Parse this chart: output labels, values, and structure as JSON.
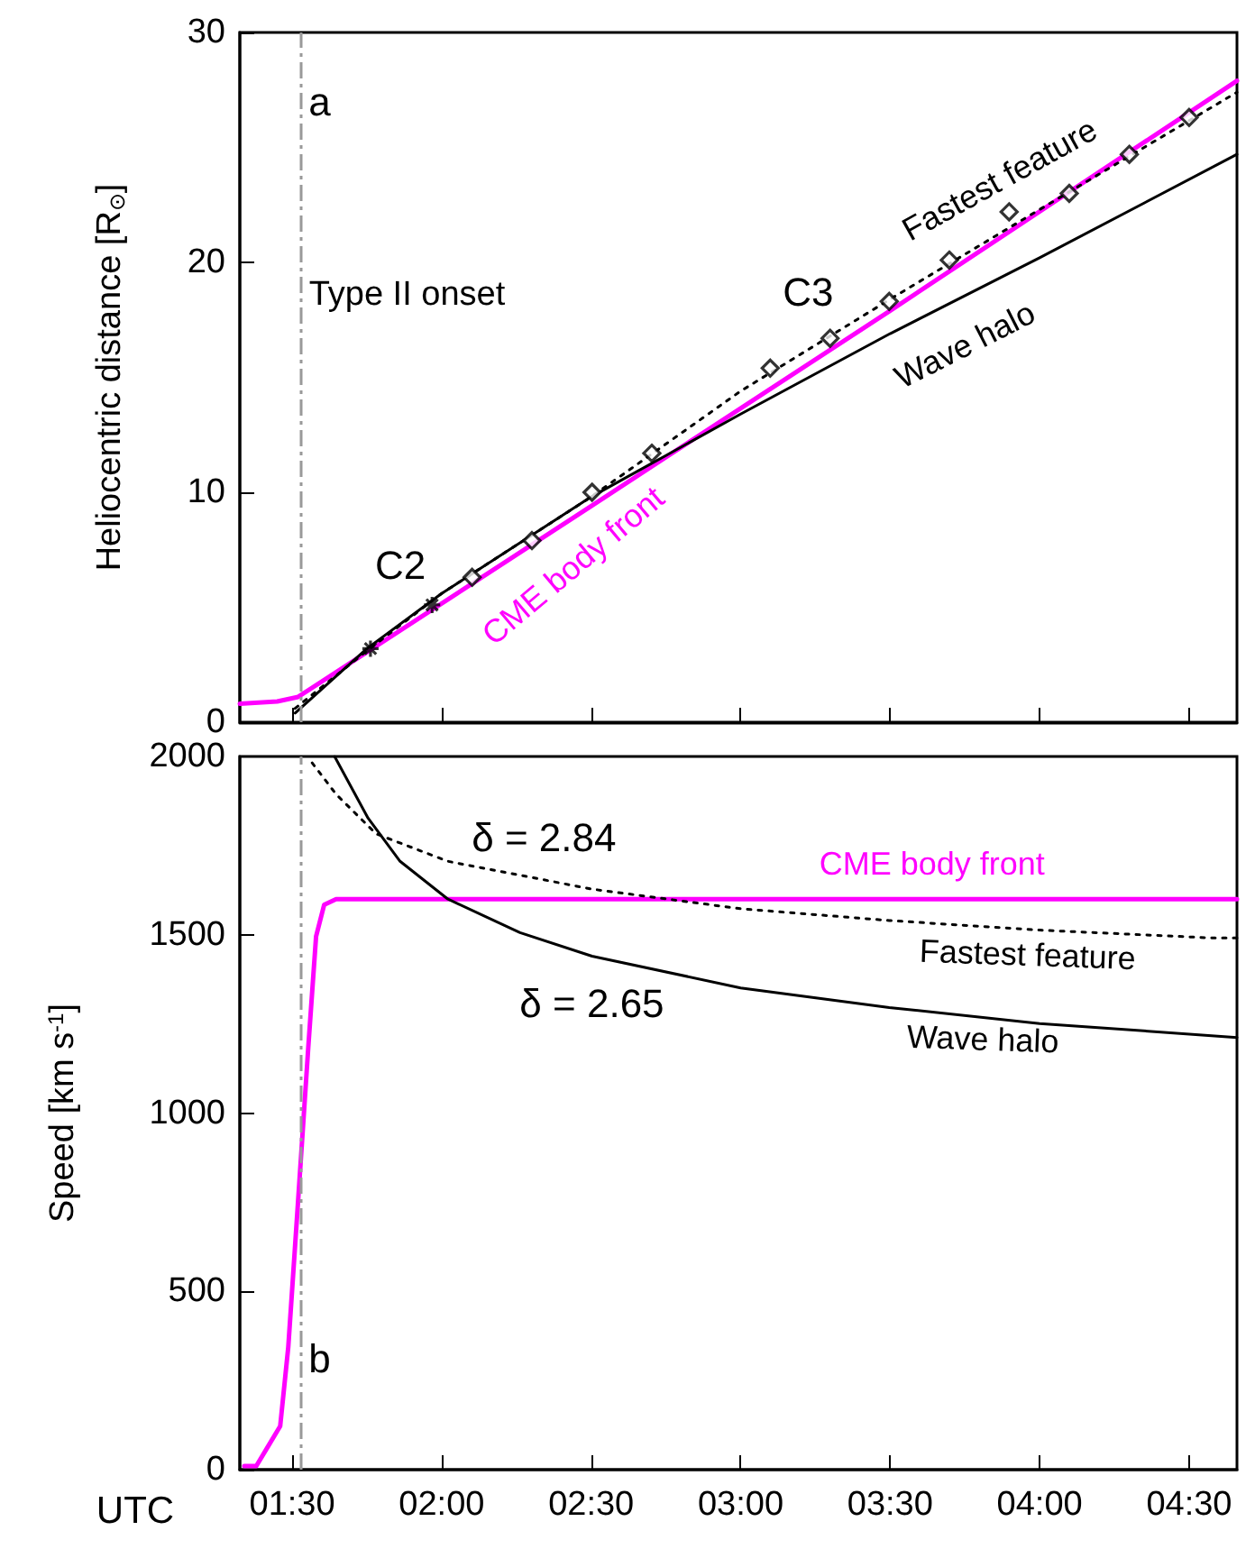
{
  "chart_data": [
    {
      "type": "line",
      "ylabel": "Heliocentric distance [R$_{⊙}$]",
      "xlim": [
        1.325,
        4.66
      ],
      "ylim": [
        0,
        30
      ],
      "yticks": [
        0,
        10,
        20,
        30
      ],
      "xticks": [
        {
          "value": 1.5,
          "label": null
        },
        {
          "value": 2,
          "label": null
        },
        {
          "value": 2.5,
          "label": null
        },
        {
          "value": 3,
          "label": null
        },
        {
          "value": 3.5,
          "label": null
        },
        {
          "value": 4,
          "label": null
        },
        {
          "value": 4.5,
          "label": null
        }
      ],
      "tick_labels": "y",
      "grid": false,
      "legend": false,
      "series": [
        {
          "name": "CME body front",
          "color": "#ff00ff",
          "line_style": "solid",
          "marker": "none",
          "x": [
            1.325,
            1.45,
            1.52,
            2.5,
            3.5,
            4.66
          ],
          "values": [
            0.8,
            0.9,
            1.1,
            9.4,
            17.9,
            27.9
          ]
        },
        {
          "name": "Fastest feature",
          "color": "#000000",
          "line_style": "dotted",
          "marker": "none",
          "x": [
            1.51,
            1.75,
            2.0,
            2.5,
            3.0,
            3.5,
            4.0,
            4.66
          ],
          "values": [
            0.6,
            3.1,
            5.6,
            9.8,
            14.4,
            18.4,
            22.3,
            27.4
          ]
        },
        {
          "name": "Wave halo",
          "color": "#000000",
          "line_style": "solid",
          "marker": "none",
          "x": [
            1.51,
            1.75,
            2.0,
            2.5,
            2.75,
            3.0,
            3.5,
            4.0,
            4.66
          ],
          "values": [
            0.4,
            3.2,
            5.6,
            9.8,
            11.6,
            13.4,
            16.9,
            20.2,
            24.7
          ]
        },
        {
          "type": "scatter",
          "color": "#000000",
          "marker": "cross",
          "x": [
            1.762,
            1.968
          ],
          "values": [
            3.2,
            5.1
          ]
        },
        {
          "type": "scatter",
          "color": "#000000",
          "marker": "diamond",
          "x": [
            2.102,
            2.302,
            2.503,
            2.703,
            3.099,
            3.299,
            3.497,
            3.698,
            3.898,
            4.099,
            4.3,
            4.5
          ],
          "values": [
            6.3,
            7.9,
            10.0,
            11.7,
            15.4,
            16.7,
            18.3,
            20.1,
            22.2,
            23.0,
            24.7,
            26.3
          ]
        }
      ],
      "ref_lines": [
        {
          "axis": "x",
          "value": 1.532,
          "label": "Type II onset",
          "color": "#999999",
          "line_style": "dashed"
        }
      ],
      "annotations": [
        "a",
        "C2",
        "C3"
      ]
    },
    {
      "type": "line",
      "xlabel": "UTC",
      "ylabel": "Speed [km s$^{-1}$]",
      "xlim": [
        1.325,
        4.66
      ],
      "ylim": [
        0,
        2000
      ],
      "yticks": [
        0,
        500,
        1000,
        1500,
        2000
      ],
      "xticks": [
        {
          "value": 1.5,
          "label": "01:30"
        },
        {
          "value": 2,
          "label": "02:00"
        },
        {
          "value": 2.5,
          "label": "02:30"
        },
        {
          "value": 3,
          "label": "03:00"
        },
        {
          "value": 3.5,
          "label": "03:30"
        },
        {
          "value": 4,
          "label": "04:00"
        },
        {
          "value": 4.5,
          "label": "04:30"
        }
      ],
      "grid": false,
      "legend": false,
      "series": [
        {
          "name": "CME body front",
          "color": "#ff00ff",
          "line_style": "solid",
          "marker": "none",
          "x": [
            1.34,
            1.38,
            1.42,
            1.46,
            1.487,
            1.519,
            1.554,
            1.58,
            1.607,
            1.647,
            4.66
          ],
          "values": [
            10,
            10,
            66,
            122,
            343,
            742,
            1185,
            1495,
            1584,
            1600,
            1600
          ]
        },
        {
          "name": "Fastest feature",
          "color": "#000000",
          "line_style": "dotted",
          "marker": "none",
          "x": [
            1.567,
            1.647,
            1.781,
            2.021,
            2.503,
            3.0,
            3.497,
            4.0,
            4.58,
            4.66
          ],
          "values": [
            1982,
            1894,
            1783,
            1706,
            1628,
            1573,
            1540,
            1513,
            1491,
            1491
          ]
        },
        {
          "name": "Wave halo",
          "color": "#000000",
          "line_style": "solid",
          "marker": "none",
          "x": [
            1.642,
            1.754,
            1.861,
            2.021,
            2.262,
            2.503,
            3.0,
            3.497,
            4.0,
            4.66
          ],
          "values": [
            2000,
            1827,
            1706,
            1600,
            1506,
            1440,
            1351,
            1296,
            1251,
            1212
          ]
        }
      ],
      "ref_lines": [
        {
          "axis": "x",
          "value": 1.532,
          "label": null,
          "color": "#999999",
          "line_style": "dashed"
        }
      ],
      "annotations": [
        "b",
        "δ = 2.84",
        "δ = 2.65"
      ]
    }
  ]
}
